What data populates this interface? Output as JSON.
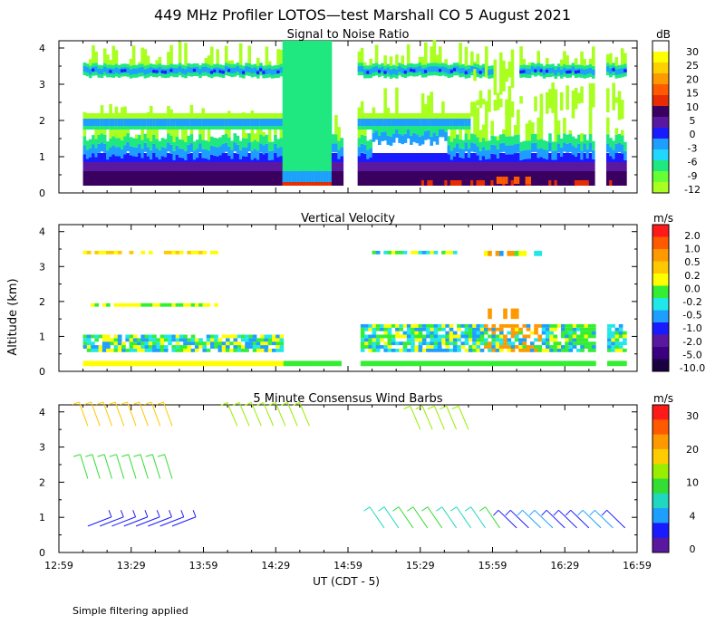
{
  "title": "449 MHz Profiler LOTOS—test Marshall CO  5 August 2021",
  "ylabel": "Altitude (km)",
  "xlabel": "UT  (CDT - 5)",
  "footnote": "Simple filtering applied",
  "chart_data": [
    {
      "type": "heatmap",
      "title": "Signal to Noise Ratio",
      "units": "dB",
      "x": [
        "12:59",
        "13:29",
        "13:59",
        "14:29",
        "14:59",
        "15:29",
        "15:59",
        "16:29",
        "16:59"
      ],
      "ylim": [
        0,
        4.2
      ],
      "yticks": [
        0,
        1,
        2,
        3,
        4
      ],
      "colorbar": {
        "labels": [
          "30",
          "25",
          "20",
          "15",
          "10",
          "5",
          "0",
          "-3",
          "-6",
          "-9",
          "-12"
        ],
        "colors": [
          "#ffffff",
          "#ffff00",
          "#ffd000",
          "#ff9900",
          "#ff5a00",
          "#e62c00",
          "#3a0060",
          "#5a18a0",
          "#1a1aff",
          "#1e9fff",
          "#20d8ff",
          "#20e880",
          "#66ff33",
          "#a8ff20"
        ]
      }
    },
    {
      "type": "heatmap",
      "title": "Vertical Velocity",
      "units": "m/s",
      "x": [
        "12:59",
        "13:29",
        "13:59",
        "14:29",
        "14:59",
        "15:29",
        "15:59",
        "16:29",
        "16:59"
      ],
      "ylim": [
        0,
        4.2
      ],
      "yticks": [
        0,
        1,
        2,
        3,
        4
      ],
      "colorbar": {
        "labels": [
          "2.0",
          "1.0",
          "0.5",
          "0.2",
          "0.0",
          "-0.2",
          "-0.5",
          "-1.0",
          "-2.0",
          "-5.0",
          "-10.0"
        ],
        "colors": [
          "#ff1a1a",
          "#ff5a00",
          "#ff9900",
          "#ffc800",
          "#ffff00",
          "#33ee33",
          "#20e8e8",
          "#1e9fff",
          "#1a1aff",
          "#5a18a0",
          "#3a0080",
          "#1a0040"
        ]
      }
    },
    {
      "type": "wind_barbs",
      "title": "5 Minute Consensus Wind Barbs",
      "units": "m/s",
      "x": [
        "12:59",
        "13:29",
        "13:59",
        "14:29",
        "14:59",
        "15:29",
        "15:59",
        "16:29",
        "16:59"
      ],
      "ylim": [
        0,
        4.2
      ],
      "yticks": [
        0,
        1,
        2,
        3,
        4
      ],
      "colorbar": {
        "labels": [
          "30",
          "20",
          "10",
          "4",
          "0"
        ],
        "colors": [
          "#ff1a1a",
          "#ff5a00",
          "#ff9900",
          "#ffcc00",
          "#99ee00",
          "#33dd33",
          "#20d8c0",
          "#1e9fff",
          "#1a1aff",
          "#5a18a0"
        ]
      }
    }
  ]
}
